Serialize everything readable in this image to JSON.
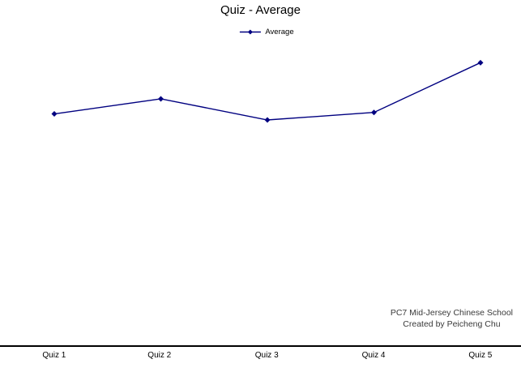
{
  "chart_data": {
    "type": "line",
    "title": "Quiz - Average",
    "categories": [
      "Quiz 1",
      "Quiz 2",
      "Quiz 3",
      "Quiz 4",
      "Quiz 5"
    ],
    "series": [
      {
        "name": "Average",
        "values": [
          7.7,
          8.2,
          7.5,
          7.75,
          9.4
        ]
      }
    ],
    "ylim": [
      0,
      10
    ],
    "xlabel": "",
    "ylabel": "",
    "grid": false,
    "y_axis_visible": false,
    "legend_position": "top-center",
    "marker": "diamond",
    "line_color": "#000080",
    "axis_color": "#000000",
    "annotations": [
      "PC7 Mid-Jersey Chinese School",
      "Created by Peicheng Chu"
    ]
  }
}
